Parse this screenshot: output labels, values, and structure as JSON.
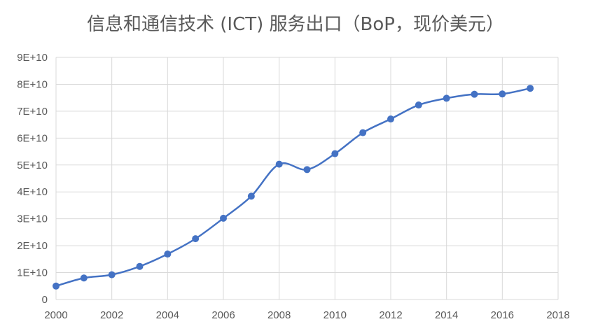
{
  "chart_data": {
    "type": "line",
    "title": "信息和通信技术 (ICT) 服务出口（BoP，现价美元）",
    "xlabel": "",
    "ylabel": "",
    "x": [
      2000,
      2001,
      2002,
      2003,
      2004,
      2005,
      2006,
      2007,
      2008,
      2009,
      2010,
      2011,
      2012,
      2013,
      2014,
      2015,
      2016,
      2017
    ],
    "series": [
      {
        "values": [
          5000000000.0,
          8000000000.0,
          9200000000.0,
          12300000000.0,
          16900000000.0,
          22600000000.0,
          30200000000.0,
          38400000000.0,
          50300000000.0,
          48300000000.0,
          54200000000.0,
          62000000000.0,
          67100000000.0,
          72300000000.0,
          74800000000.0,
          76300000000.0,
          76400000000.0,
          78500000000.0
        ],
        "color": "#4472c4"
      }
    ],
    "xlim": [
      2000,
      2018
    ],
    "ylim": [
      0,
      90000000000.0
    ],
    "x_ticks": [
      "2000",
      "2002",
      "2004",
      "2006",
      "2008",
      "2010",
      "2012",
      "2014",
      "2016",
      "2018"
    ],
    "y_ticks": [
      "0",
      "1E+10",
      "2E+10",
      "3E+10",
      "4E+10",
      "5E+10",
      "6E+10",
      "7E+10",
      "8E+10",
      "9E+10"
    ],
    "grid": true,
    "smooth": true
  }
}
